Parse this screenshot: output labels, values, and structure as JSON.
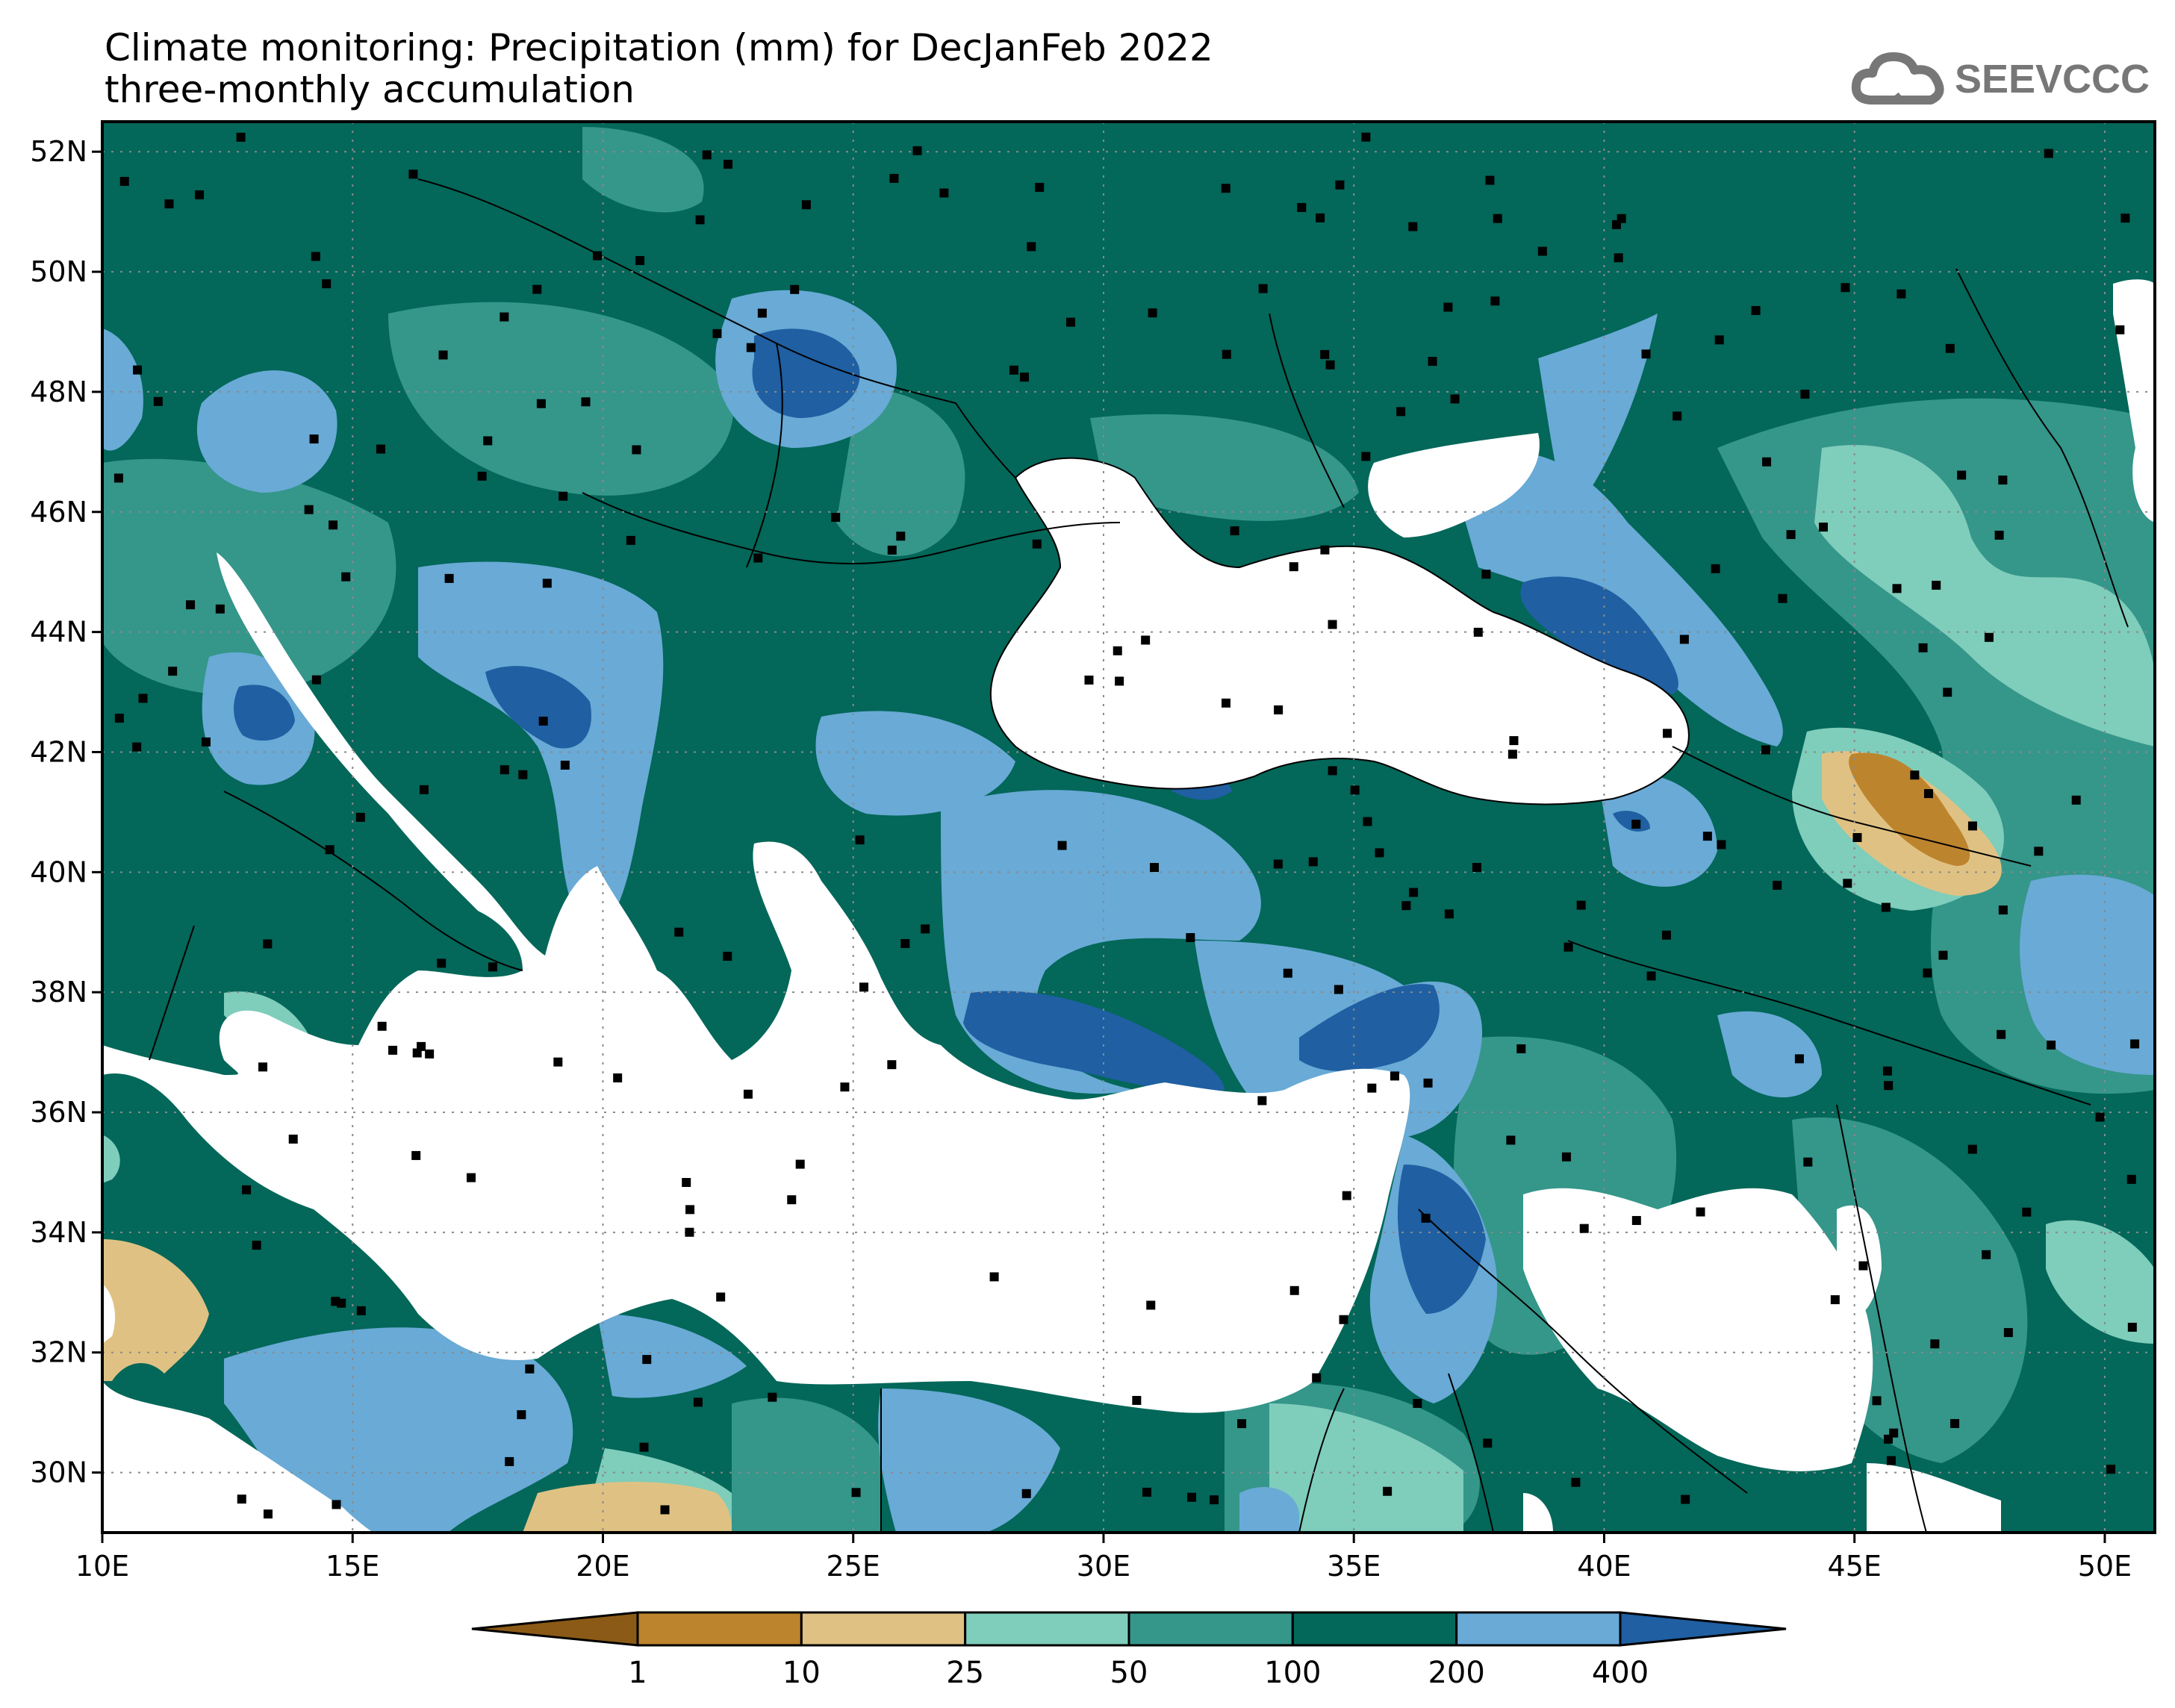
{
  "title": {
    "line1": "Climate monitoring: Precipitation (mm) for DecJanFeb 2022",
    "line2": "three-monthly accumulation"
  },
  "logo": {
    "text": "SEEVCCC",
    "icon": "cloud-icon",
    "color": "#777777"
  },
  "map": {
    "lon_range": [
      10,
      51
    ],
    "lat_range": [
      29,
      52.5
    ],
    "gridlines": true,
    "lon_ticks": [
      "10E",
      "15E",
      "20E",
      "25E",
      "30E",
      "35E",
      "40E",
      "45E",
      "50E"
    ],
    "lat_ticks": [
      "52N",
      "50N",
      "48N",
      "46N",
      "44N",
      "42N",
      "40N",
      "38N",
      "36N",
      "34N",
      "32N",
      "30N"
    ],
    "base_category_color": "#036759"
  },
  "colorbar": {
    "labels": [
      "1",
      "10",
      "25",
      "50",
      "100",
      "200",
      "400"
    ],
    "colors": [
      "#8b5a16",
      "#bd842e",
      "#dfc283",
      "#7fcdbb",
      "#35968a",
      "#036759",
      "#69aad6",
      "#1f5fa2"
    ]
  }
}
